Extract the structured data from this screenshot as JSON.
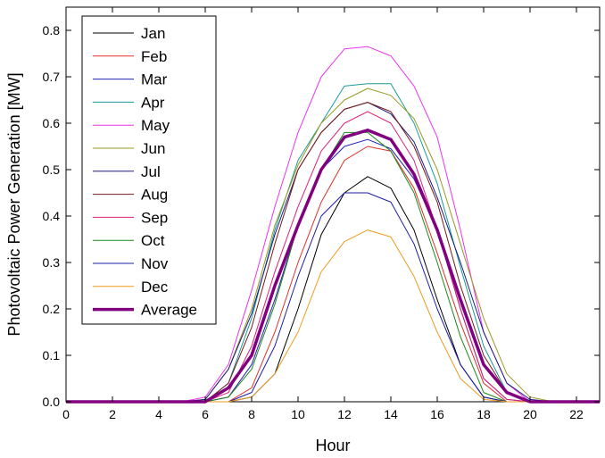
{
  "chart_data": {
    "type": "line",
    "title": "",
    "xlabel": "Hour",
    "ylabel": "Photovoltaic Power Generation [MW]",
    "xlim": [
      0,
      23
    ],
    "ylim": [
      0,
      0.85
    ],
    "xticks": [
      0,
      2,
      4,
      6,
      8,
      10,
      12,
      14,
      16,
      18,
      20,
      22
    ],
    "xtick_labels": [
      "0",
      "2",
      "4",
      "6",
      "8",
      "10",
      "12",
      "14",
      "16",
      "18",
      "20",
      "22"
    ],
    "yticks": [
      0,
      0.1,
      0.2,
      0.3,
      0.4,
      0.5,
      0.6,
      0.7,
      0.8
    ],
    "ytick_labels": [
      "0.0",
      "0.1",
      "0.2",
      "0.3",
      "0.4",
      "0.5",
      "0.6",
      "0.7",
      "0.8"
    ],
    "grid": false,
    "legend_position": "top-left",
    "x": [
      0,
      1,
      2,
      3,
      4,
      5,
      6,
      7,
      8,
      9,
      10,
      11,
      12,
      13,
      14,
      15,
      16,
      17,
      18,
      19,
      20,
      21,
      22,
      23
    ],
    "series": [
      {
        "name": "Jan",
        "color": "#000000",
        "width": 1,
        "values": [
          0,
          0,
          0,
          0,
          0,
          0,
          0,
          0,
          0.01,
          0.06,
          0.2,
          0.36,
          0.45,
          0.485,
          0.46,
          0.37,
          0.22,
          0.08,
          0.01,
          0,
          0,
          0,
          0,
          0
        ]
      },
      {
        "name": "Feb",
        "color": "#e0302a",
        "width": 1,
        "values": [
          0,
          0,
          0,
          0,
          0,
          0,
          0,
          0,
          0.03,
          0.15,
          0.3,
          0.43,
          0.52,
          0.55,
          0.54,
          0.46,
          0.32,
          0.17,
          0.04,
          0,
          0,
          0,
          0,
          0
        ]
      },
      {
        "name": "Mar",
        "color": "#2020b0",
        "width": 1,
        "values": [
          0,
          0,
          0,
          0,
          0,
          0,
          0,
          0.01,
          0.08,
          0.22,
          0.38,
          0.5,
          0.55,
          0.565,
          0.545,
          0.48,
          0.37,
          0.2,
          0.05,
          0.005,
          0,
          0,
          0,
          0
        ]
      },
      {
        "name": "Apr",
        "color": "#1a9a9a",
        "width": 1,
        "values": [
          0,
          0,
          0,
          0,
          0,
          0,
          0,
          0.04,
          0.18,
          0.37,
          0.52,
          0.6,
          0.68,
          0.685,
          0.685,
          0.6,
          0.47,
          0.29,
          0.12,
          0.02,
          0,
          0,
          0,
          0
        ]
      },
      {
        "name": "May",
        "color": "#ee33ee",
        "width": 1,
        "values": [
          0,
          0,
          0,
          0,
          0,
          0,
          0.01,
          0.08,
          0.24,
          0.42,
          0.58,
          0.7,
          0.76,
          0.765,
          0.745,
          0.68,
          0.57,
          0.37,
          0.15,
          0.04,
          0,
          0,
          0,
          0
        ]
      },
      {
        "name": "Jun",
        "color": "#999922",
        "width": 1,
        "values": [
          0,
          0,
          0,
          0,
          0,
          0,
          0.005,
          0.07,
          0.2,
          0.38,
          0.51,
          0.6,
          0.65,
          0.675,
          0.66,
          0.61,
          0.5,
          0.34,
          0.18,
          0.06,
          0.01,
          0,
          0,
          0
        ]
      },
      {
        "name": "Jul",
        "color": "#1c1c80",
        "width": 1,
        "values": [
          0,
          0,
          0,
          0,
          0,
          0,
          0.005,
          0.07,
          0.19,
          0.36,
          0.5,
          0.58,
          0.63,
          0.645,
          0.62,
          0.56,
          0.44,
          0.3,
          0.15,
          0.04,
          0.005,
          0,
          0,
          0
        ]
      },
      {
        "name": "Aug",
        "color": "#7a1a1a",
        "width": 1,
        "values": [
          0,
          0,
          0,
          0,
          0,
          0,
          0,
          0.04,
          0.16,
          0.34,
          0.5,
          0.58,
          0.63,
          0.645,
          0.625,
          0.55,
          0.43,
          0.25,
          0.1,
          0.02,
          0,
          0,
          0,
          0
        ]
      },
      {
        "name": "Sep",
        "color": "#e0207a",
        "width": 1,
        "values": [
          0,
          0,
          0,
          0,
          0,
          0,
          0,
          0.02,
          0.12,
          0.28,
          0.42,
          0.54,
          0.6,
          0.625,
          0.6,
          0.52,
          0.37,
          0.2,
          0.05,
          0.005,
          0,
          0,
          0,
          0
        ]
      },
      {
        "name": "Oct",
        "color": "#1a8a1a",
        "width": 1,
        "values": [
          0,
          0,
          0,
          0,
          0,
          0,
          0,
          0.01,
          0.07,
          0.21,
          0.38,
          0.5,
          0.58,
          0.58,
          0.54,
          0.45,
          0.3,
          0.14,
          0.02,
          0,
          0,
          0,
          0,
          0
        ]
      },
      {
        "name": "Nov",
        "color": "#1e1ea8",
        "width": 1,
        "values": [
          0,
          0,
          0,
          0,
          0,
          0,
          0,
          0,
          0.02,
          0.12,
          0.27,
          0.4,
          0.45,
          0.45,
          0.43,
          0.34,
          0.2,
          0.08,
          0.01,
          0,
          0,
          0,
          0,
          0
        ]
      },
      {
        "name": "Dec",
        "color": "#f09a20",
        "width": 1,
        "values": [
          0,
          0,
          0,
          0,
          0,
          0,
          0,
          0,
          0.01,
          0.06,
          0.15,
          0.28,
          0.345,
          0.37,
          0.355,
          0.27,
          0.15,
          0.05,
          0.005,
          0,
          0,
          0,
          0,
          0
        ]
      },
      {
        "name": "Average",
        "color": "#800080",
        "width": 3.5,
        "values": [
          0,
          0,
          0,
          0,
          0,
          0,
          0,
          0.03,
          0.1,
          0.25,
          0.38,
          0.5,
          0.57,
          0.585,
          0.565,
          0.49,
          0.37,
          0.22,
          0.08,
          0.02,
          0,
          0,
          0,
          0
        ]
      }
    ]
  }
}
